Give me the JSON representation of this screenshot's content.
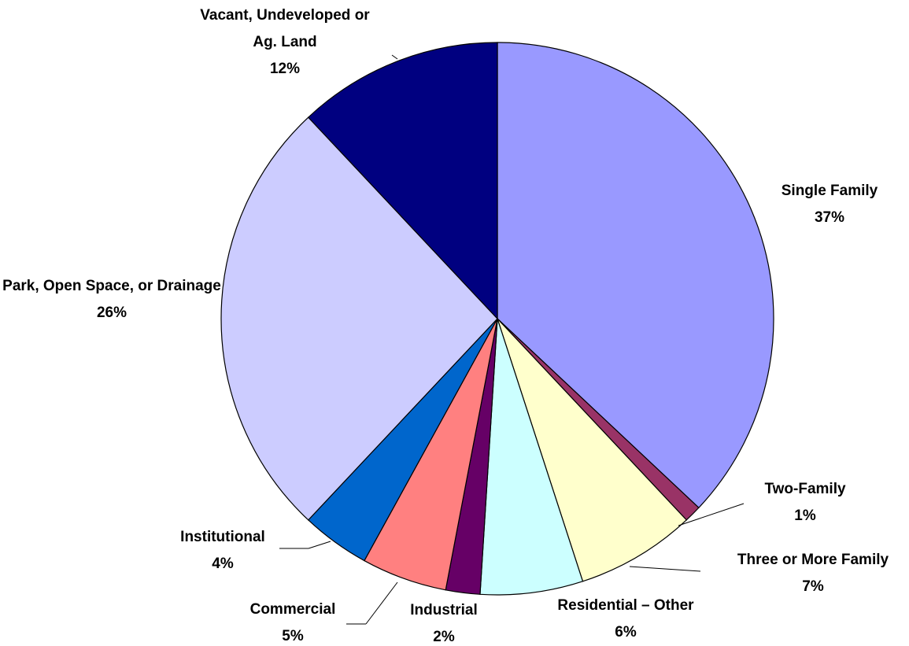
{
  "chart_data": {
    "type": "pie",
    "categories": [
      "Single Family",
      "Two-Family",
      "Three or More Family",
      "Residential – Other",
      "Industrial",
      "Commercial",
      "Institutional",
      "Park, Open Space, or Drainage",
      "Vacant, Undeveloped or Ag. Land"
    ],
    "values": [
      37,
      1,
      7,
      6,
      2,
      5,
      4,
      26,
      12
    ],
    "value_labels": [
      "37%",
      "1%",
      "7%",
      "6%",
      "2%",
      "5%",
      "4%",
      "26%",
      "12%"
    ],
    "colors": [
      "#9999ff",
      "#993366",
      "#ffffcc",
      "#ccffff",
      "#660066",
      "#ff8080",
      "#0066cc",
      "#ccccff",
      "#000080"
    ]
  }
}
